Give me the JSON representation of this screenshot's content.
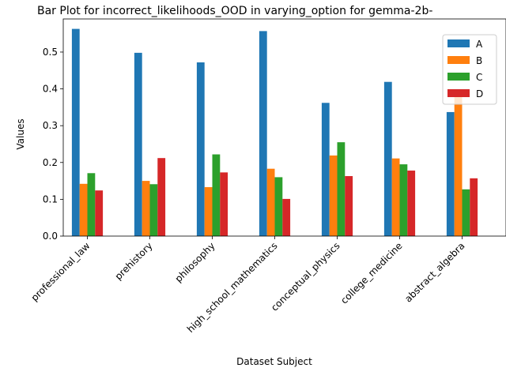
{
  "chart_data": {
    "type": "bar",
    "title": "Bar Plot for incorrect_likelihoods_OOD in varying_option for gemma-2b-",
    "xlabel": "Dataset Subject",
    "ylabel": "Values",
    "ylim": [
      0,
      0.59
    ],
    "yticks": [
      "0.0",
      "0.1",
      "0.2",
      "0.3",
      "0.4",
      "0.5"
    ],
    "categories": [
      "professional_law",
      "prehistory",
      "philosophy",
      "high_school_mathematics",
      "conceptual_physics",
      "college_medicine",
      "abstract_algebra"
    ],
    "series": [
      {
        "name": "A",
        "color": "#1f77b4",
        "values": [
          0.563,
          0.498,
          0.472,
          0.557,
          0.362,
          0.419,
          0.337
        ]
      },
      {
        "name": "B",
        "color": "#ff7f0e",
        "values": [
          0.142,
          0.15,
          0.133,
          0.183,
          0.219,
          0.211,
          0.38
        ]
      },
      {
        "name": "C",
        "color": "#2ca02c",
        "values": [
          0.171,
          0.141,
          0.222,
          0.16,
          0.255,
          0.195,
          0.127
        ]
      },
      {
        "name": "D",
        "color": "#d62728",
        "values": [
          0.124,
          0.212,
          0.173,
          0.101,
          0.163,
          0.178,
          0.157
        ]
      }
    ],
    "legend": "top-right",
    "grid": false
  }
}
